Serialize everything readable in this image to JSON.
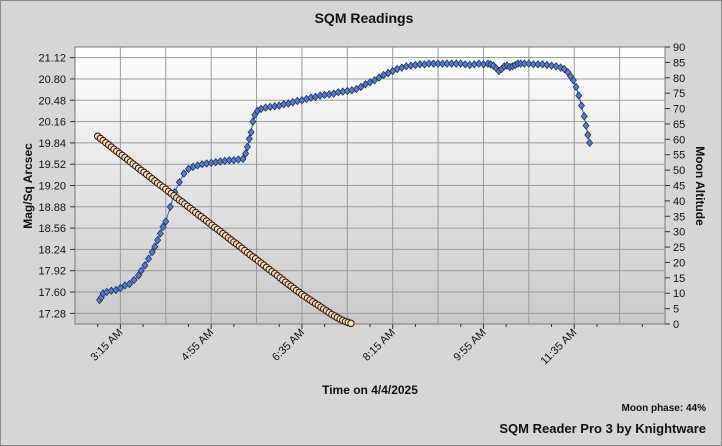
{
  "chart_data": {
    "type": "scatter",
    "title": "SQM Readings",
    "xlabel": "Time on 4/4/2025",
    "ylabel": "Mag/Sq Arcsec",
    "y2label": "Moon Altitude",
    "x_tick_labels": [
      "3:15 AM",
      "4:55 AM",
      "6:35 AM",
      "8:15 AM",
      "9:55 AM",
      "11:35 AM"
    ],
    "x_ticks_minutes": [
      195,
      295,
      395,
      495,
      595,
      695
    ],
    "xlim_minutes": [
      145,
      795
    ],
    "y_tick_labels": [
      "17.28",
      "17.60",
      "17.92",
      "18.24",
      "18.56",
      "18.88",
      "19.20",
      "19.52",
      "19.84",
      "20.16",
      "20.48",
      "20.80",
      "21.12"
    ],
    "ylim": [
      17.12,
      21.28
    ],
    "y2_tick_labels": [
      "0",
      "5",
      "10",
      "15",
      "20",
      "25",
      "30",
      "35",
      "40",
      "45",
      "50",
      "55",
      "60",
      "65",
      "70",
      "75",
      "80",
      "85",
      "90"
    ],
    "y2lim": [
      0,
      90
    ],
    "grid": true,
    "series": [
      {
        "color": "#5b7cc4",
        "marker": "diamond",
        "points": [
          [
            172,
            17.48
          ],
          [
            174,
            17.52
          ],
          [
            176,
            17.58
          ],
          [
            180,
            17.6
          ],
          [
            185,
            17.62
          ],
          [
            190,
            17.63
          ],
          [
            195,
            17.66
          ],
          [
            200,
            17.7
          ],
          [
            205,
            17.72
          ],
          [
            210,
            17.78
          ],
          [
            215,
            17.85
          ],
          [
            218,
            17.92
          ],
          [
            222,
            18.0
          ],
          [
            226,
            18.1
          ],
          [
            230,
            18.2
          ],
          [
            233,
            18.28
          ],
          [
            236,
            18.38
          ],
          [
            239,
            18.48
          ],
          [
            242,
            18.58
          ],
          [
            245,
            18.66
          ],
          [
            250,
            18.88
          ],
          [
            255,
            19.1
          ],
          [
            260,
            19.25
          ],
          [
            265,
            19.38
          ],
          [
            270,
            19.45
          ],
          [
            275,
            19.48
          ],
          [
            280,
            19.5
          ],
          [
            285,
            19.52
          ],
          [
            290,
            19.53
          ],
          [
            295,
            19.54
          ],
          [
            300,
            19.55
          ],
          [
            305,
            19.56
          ],
          [
            310,
            19.57
          ],
          [
            315,
            19.58
          ],
          [
            320,
            19.58
          ],
          [
            325,
            19.59
          ],
          [
            330,
            19.6
          ],
          [
            333,
            19.68
          ],
          [
            335,
            19.78
          ],
          [
            337,
            19.9
          ],
          [
            339,
            20.0
          ],
          [
            341,
            20.16
          ],
          [
            343,
            20.26
          ],
          [
            346,
            20.32
          ],
          [
            350,
            20.35
          ],
          [
            355,
            20.37
          ],
          [
            360,
            20.38
          ],
          [
            365,
            20.39
          ],
          [
            370,
            20.4
          ],
          [
            375,
            20.42
          ],
          [
            380,
            20.43
          ],
          [
            385,
            20.45
          ],
          [
            390,
            20.47
          ],
          [
            395,
            20.48
          ],
          [
            400,
            20.5
          ],
          [
            405,
            20.52
          ],
          [
            410,
            20.53
          ],
          [
            415,
            20.55
          ],
          [
            420,
            20.56
          ],
          [
            425,
            20.57
          ],
          [
            430,
            20.58
          ],
          [
            435,
            20.6
          ],
          [
            440,
            20.61
          ],
          [
            445,
            20.62
          ],
          [
            450,
            20.63
          ],
          [
            455,
            20.65
          ],
          [
            460,
            20.68
          ],
          [
            465,
            20.72
          ],
          [
            470,
            20.75
          ],
          [
            475,
            20.78
          ],
          [
            480,
            20.82
          ],
          [
            485,
            20.86
          ],
          [
            490,
            20.89
          ],
          [
            495,
            20.92
          ],
          [
            500,
            20.95
          ],
          [
            505,
            20.97
          ],
          [
            510,
            20.99
          ],
          [
            515,
            21.0
          ],
          [
            520,
            21.01
          ],
          [
            525,
            21.02
          ],
          [
            530,
            21.02
          ],
          [
            535,
            21.03
          ],
          [
            540,
            21.03
          ],
          [
            545,
            21.03
          ],
          [
            550,
            21.03
          ],
          [
            555,
            21.03
          ],
          [
            560,
            21.03
          ],
          [
            565,
            21.03
          ],
          [
            570,
            21.03
          ],
          [
            575,
            21.02
          ],
          [
            580,
            21.01
          ],
          [
            585,
            21.02
          ],
          [
            590,
            21.03
          ],
          [
            595,
            21.02
          ],
          [
            600,
            21.03
          ],
          [
            603,
            21.02
          ],
          [
            606,
            21.0
          ],
          [
            609,
            20.96
          ],
          [
            612,
            20.92
          ],
          [
            615,
            20.95
          ],
          [
            618,
            20.99
          ],
          [
            621,
            21.0
          ],
          [
            624,
            20.98
          ],
          [
            627,
            20.99
          ],
          [
            630,
            21.01
          ],
          [
            633,
            21.03
          ],
          [
            636,
            21.03
          ],
          [
            640,
            21.03
          ],
          [
            645,
            21.03
          ],
          [
            650,
            21.02
          ],
          [
            655,
            21.02
          ],
          [
            660,
            21.02
          ],
          [
            665,
            21.01
          ],
          [
            670,
            21.0
          ],
          [
            675,
            20.99
          ],
          [
            680,
            20.97
          ],
          [
            684,
            20.95
          ],
          [
            688,
            20.9
          ],
          [
            691,
            20.84
          ],
          [
            694,
            20.78
          ],
          [
            697,
            20.68
          ],
          [
            700,
            20.55
          ],
          [
            703,
            20.4
          ],
          [
            706,
            20.24
          ],
          [
            708,
            20.1
          ],
          [
            710,
            19.96
          ],
          [
            712,
            19.84
          ]
        ]
      },
      {
        "color": "#f3dcc0",
        "marker": "circle",
        "points": [
          [
            170,
            61.0
          ],
          [
            173,
            60.3
          ],
          [
            176,
            59.6
          ],
          [
            179,
            58.9
          ],
          [
            182,
            58.2
          ],
          [
            185,
            57.5
          ],
          [
            188,
            56.8
          ],
          [
            191,
            56.1
          ],
          [
            194,
            55.4
          ],
          [
            197,
            54.8
          ],
          [
            200,
            54.1
          ],
          [
            203,
            53.4
          ],
          [
            206,
            52.7
          ],
          [
            209,
            52.0
          ],
          [
            212,
            51.3
          ],
          [
            215,
            50.6
          ],
          [
            218,
            49.9
          ],
          [
            221,
            49.3
          ],
          [
            224,
            48.6
          ],
          [
            227,
            47.9
          ],
          [
            230,
            47.2
          ],
          [
            233,
            46.5
          ],
          [
            236,
            45.8
          ],
          [
            239,
            45.1
          ],
          [
            242,
            44.5
          ],
          [
            245,
            43.8
          ],
          [
            248,
            43.1
          ],
          [
            251,
            42.4
          ],
          [
            254,
            41.7
          ],
          [
            257,
            41.0
          ],
          [
            260,
            40.3
          ],
          [
            263,
            39.7
          ],
          [
            266,
            39.0
          ],
          [
            269,
            38.3
          ],
          [
            272,
            37.6
          ],
          [
            275,
            36.9
          ],
          [
            278,
            36.2
          ],
          [
            281,
            35.5
          ],
          [
            284,
            34.9
          ],
          [
            287,
            34.2
          ],
          [
            290,
            33.5
          ],
          [
            293,
            32.8
          ],
          [
            296,
            32.1
          ],
          [
            299,
            31.4
          ],
          [
            302,
            30.8
          ],
          [
            305,
            30.1
          ],
          [
            308,
            29.4
          ],
          [
            311,
            28.7
          ],
          [
            314,
            28.0
          ],
          [
            317,
            27.3
          ],
          [
            320,
            26.6
          ],
          [
            323,
            26.0
          ],
          [
            326,
            25.3
          ],
          [
            329,
            24.6
          ],
          [
            332,
            23.9
          ],
          [
            335,
            23.2
          ],
          [
            338,
            22.5
          ],
          [
            341,
            21.8
          ],
          [
            344,
            21.2
          ],
          [
            347,
            20.5
          ],
          [
            350,
            19.8
          ],
          [
            353,
            19.1
          ],
          [
            356,
            18.4
          ],
          [
            359,
            17.7
          ],
          [
            362,
            17.0
          ],
          [
            365,
            16.4
          ],
          [
            368,
            15.7
          ],
          [
            371,
            15.0
          ],
          [
            374,
            14.3
          ],
          [
            377,
            13.6
          ],
          [
            380,
            12.9
          ],
          [
            383,
            12.3
          ],
          [
            386,
            11.6
          ],
          [
            389,
            10.9
          ],
          [
            392,
            10.3
          ],
          [
            395,
            9.6
          ],
          [
            398,
            9.0
          ],
          [
            401,
            8.4
          ],
          [
            404,
            7.8
          ],
          [
            407,
            7.2
          ],
          [
            410,
            6.6
          ],
          [
            413,
            6.1
          ],
          [
            416,
            5.5
          ],
          [
            419,
            4.9
          ],
          [
            422,
            4.3
          ],
          [
            425,
            3.7
          ],
          [
            428,
            3.1
          ],
          [
            431,
            2.6
          ],
          [
            434,
            2.1
          ],
          [
            437,
            1.6
          ],
          [
            440,
            1.2
          ],
          [
            443,
            0.8
          ],
          [
            446,
            0.5
          ],
          [
            449,
            0.2
          ]
        ]
      }
    ]
  },
  "footer": {
    "moon_phase": "Moon phase: 44%",
    "credit": "SQM Reader Pro 3 by Knightware"
  }
}
